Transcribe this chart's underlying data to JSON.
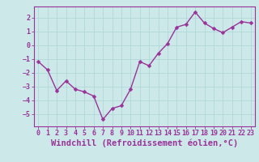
{
  "x": [
    0,
    1,
    2,
    3,
    4,
    5,
    6,
    7,
    8,
    9,
    10,
    11,
    12,
    13,
    14,
    15,
    16,
    17,
    18,
    19,
    20,
    21,
    22,
    23
  ],
  "y": [
    -1.2,
    -1.8,
    -3.3,
    -2.6,
    -3.2,
    -3.4,
    -3.7,
    -5.4,
    -4.6,
    -4.4,
    -3.2,
    -1.2,
    -1.5,
    -0.6,
    0.1,
    1.3,
    1.5,
    2.4,
    1.6,
    1.2,
    0.9,
    1.3,
    1.7,
    1.6
  ],
  "line_color": "#993399",
  "marker": "D",
  "marker_size": 2.5,
  "bg_color": "#cce8e8",
  "grid_color": "#b0d8d8",
  "xlabel": "Windchill (Refroidissement éolien,°C)",
  "xlabel_color": "#993399",
  "ylim": [
    -5.9,
    2.8
  ],
  "xlim": [
    -0.5,
    23.5
  ],
  "yticks": [
    -5,
    -4,
    -3,
    -2,
    -1,
    0,
    1,
    2
  ],
  "xticks": [
    0,
    1,
    2,
    3,
    4,
    5,
    6,
    7,
    8,
    9,
    10,
    11,
    12,
    13,
    14,
    15,
    16,
    17,
    18,
    19,
    20,
    21,
    22,
    23
  ],
  "tick_color": "#993399",
  "tick_fontsize": 6.0,
  "xlabel_fontsize": 7.5,
  "line_width": 1.0,
  "spine_color": "#993399"
}
